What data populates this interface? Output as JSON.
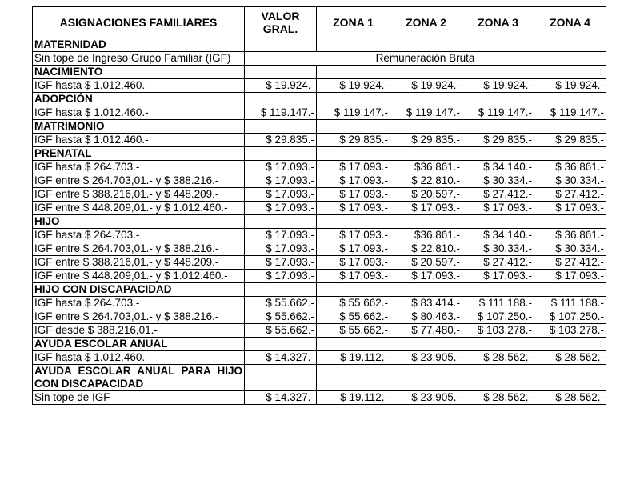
{
  "table": {
    "header": [
      "ASIGNACIONES FAMILIARES",
      "VALOR GRAL.",
      "ZONA 1",
      "ZONA 2",
      "ZONA 3",
      "ZONA 4"
    ],
    "sections": [
      {
        "title": "MATERNIDAD",
        "rows": [
          [
            "Sin tope de Ingreso Grupo Familiar (IGF)",
            "Remuneración Bruta"
          ]
        ]
      },
      {
        "title": "NACIMIENTO",
        "rows": [
          [
            "IGF hasta $ 1.012.460.-",
            "$ 19.924.-",
            "$ 19.924.-",
            "$ 19.924.-",
            "$ 19.924.-",
            "$ 19.924.-"
          ]
        ]
      },
      {
        "title": "ADOPCIÓN",
        "rows": [
          [
            "IGF hasta $ 1.012.460.-",
            "$ 119.147.-",
            "$ 119.147.-",
            "$ 119.147.-",
            "$ 119.147.-",
            "$ 119.147.-"
          ]
        ]
      },
      {
        "title": "MATRIMONIO",
        "rows": [
          [
            "IGF hasta $ 1.012.460.-",
            "$ 29.835.-",
            "$ 29.835.-",
            "$ 29.835.-",
            "$ 29.835.-",
            "$ 29.835.-"
          ]
        ]
      },
      {
        "title": "PRENATAL",
        "rows": [
          [
            "IGF hasta $ 264.703.-",
            "$ 17.093.-",
            "$ 17.093.-",
            "$36.861.-",
            "$ 34.140.-",
            "$ 36.861.-"
          ],
          [
            "IGF entre $ 264.703,01.- y $ 388.216.-",
            "$ 17.093.-",
            "$ 17.093.-",
            "$ 22.810.-",
            "$ 30.334.-",
            "$ 30.334.-"
          ],
          [
            "IGF entre $ 388.216,01.- y $ 448.209.-",
            "$ 17.093.-",
            "$ 17.093.-",
            "$ 20.597.-",
            "$ 27.412.-",
            "$ 27.412.-"
          ],
          [
            "IGF entre $ 448.209,01.- y $ 1.012.460.-",
            "$ 17.093.-",
            "$ 17.093.-",
            "$ 17.093.-",
            "$ 17.093.-",
            "$ 17.093.-"
          ]
        ]
      },
      {
        "title": "HIJO",
        "rows": [
          [
            "IGF hasta $ 264.703.-",
            "$ 17.093.-",
            "$ 17.093.-",
            "$36.861.-",
            "$ 34.140.-",
            "$ 36.861.-"
          ],
          [
            "IGF entre $ 264.703,01.- y $ 388.216.-",
            "$ 17.093.-",
            "$ 17.093.-",
            "$ 22.810.-",
            "$ 30.334.-",
            "$ 30.334.-"
          ],
          [
            "IGF entre $ 388.216,01.- y $ 448.209.-",
            "$ 17.093.-",
            "$ 17.093.-",
            "$ 20.597.-",
            "$ 27.412.-",
            "$ 27.412.-"
          ],
          [
            "IGF entre $ 448.209,01.- y $ 1.012.460.-",
            "$ 17.093.-",
            "$ 17.093.-",
            "$ 17.093.-",
            "$ 17.093.-",
            "$ 17.093.-"
          ]
        ]
      },
      {
        "title": "HIJO CON DISCAPACIDAD",
        "rows": [
          [
            "IGF hasta $ 264.703.-",
            "$ 55.662.-",
            "$ 55.662.-",
            "$ 83.414.-",
            "$ 111.188.-",
            "$ 111.188.-"
          ],
          [
            "IGF entre $ 264.703,01.- y $ 388.216.-",
            "$ 55.662.-",
            "$ 55.662.-",
            "$ 80.463.-",
            "$ 107.250.-",
            "$ 107.250.-"
          ],
          [
            "IGF desde $ 388.216,01.-",
            "$ 55.662.-",
            "$ 55.662.-",
            "$ 77.480.-",
            "$ 103.278.-",
            "$ 103.278.-"
          ]
        ]
      },
      {
        "title": "AYUDA ESCOLAR ANUAL",
        "rows": [
          [
            "IGF hasta $ 1.012.460.-",
            "$ 14.327.-",
            "$ 19.112.-",
            "$ 23.905.-",
            "$ 28.562.-",
            "$ 28.562.-"
          ]
        ]
      },
      {
        "title": "AYUDA ESCOLAR ANUAL PARA HIJO CON DISCAPACIDAD",
        "rows": [
          [
            "Sin tope de IGF",
            "$ 14.327.-",
            "$ 19.112.-",
            "$ 23.905.-",
            "$ 28.562.-",
            "$ 28.562.-"
          ]
        ]
      }
    ]
  }
}
